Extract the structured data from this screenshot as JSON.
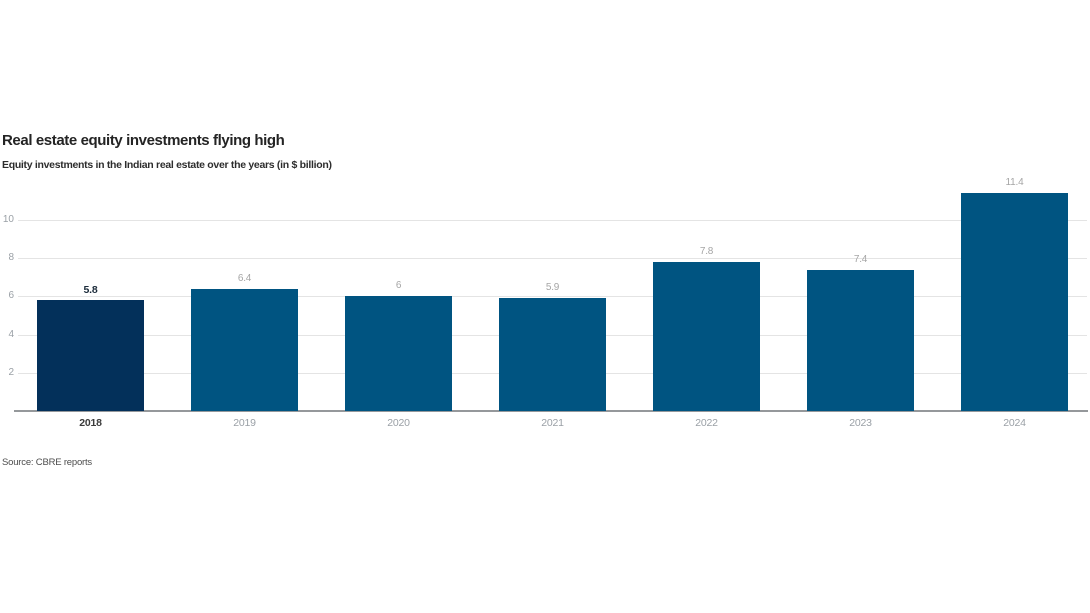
{
  "chart_data": {
    "type": "bar",
    "title": "Real estate equity investments flying high",
    "subtitle": "Equity investments in the Indian real estate over the years (in $ billion)",
    "source_note": "Source: CBRE reports",
    "categories": [
      "2018",
      "2019",
      "2020",
      "2021",
      "2022",
      "2023",
      "2024"
    ],
    "values": [
      5.8,
      6.4,
      6,
      5.9,
      7.8,
      7.4,
      11.4
    ],
    "value_labels": [
      "5.8",
      "6.4",
      "6",
      "5.9",
      "7.8",
      "7.4",
      "11.4"
    ],
    "xlabel": "",
    "ylabel": "",
    "yticks": [
      2,
      4,
      6,
      8,
      10
    ],
    "ylim": [
      0,
      11.7
    ],
    "grid": true,
    "legend": "none",
    "highlight_index": 0,
    "colors": {
      "bar": "#005481",
      "highlight_bar": "#03305a",
      "value_label": "#a5a5a5",
      "highlight_value_label": "#1b2b3a",
      "tick_label": "#9aa0a6",
      "highlight_tick_label": "#3b3b3b"
    }
  }
}
